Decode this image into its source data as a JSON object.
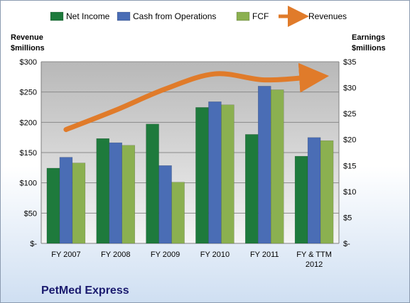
{
  "chart_data": {
    "type": "bar",
    "title": "PetMed Express",
    "categories": [
      "FY 2007",
      "FY 2008",
      "FY 2009",
      "FY 2010",
      "FY 2011",
      "FY & TTM 2012"
    ],
    "series": [
      {
        "name": "Net Income",
        "axis": "right",
        "color": "#1e7a3c",
        "values": [
          14.5,
          20.2,
          23.0,
          26.2,
          21.0,
          16.8
        ]
      },
      {
        "name": "Cash from Operations",
        "axis": "right",
        "color": "#4a6db5",
        "values": [
          16.6,
          19.4,
          15.0,
          27.3,
          30.3,
          20.4
        ]
      },
      {
        "name": "FCF",
        "axis": "right",
        "color": "#8bb050",
        "values": [
          15.5,
          18.9,
          11.8,
          26.7,
          29.6,
          19.8
        ]
      }
    ],
    "line": {
      "name": "Revenues",
      "axis": "left",
      "color": "#e07b2a",
      "values": [
        188,
        220,
        255,
        280,
        270,
        275
      ]
    },
    "y_left": {
      "label_line1": "Revenue",
      "label_line2": "$millions",
      "ylim": [
        0,
        300
      ],
      "ticks": [
        0,
        50,
        100,
        150,
        200,
        250,
        300
      ],
      "tick_labels": [
        "$-",
        "$50",
        "$100",
        "$150",
        "$200",
        "$250",
        "$300"
      ]
    },
    "y_right": {
      "label_line1": "Earnings",
      "label_line2": "$millions",
      "ylim": [
        0,
        35
      ],
      "ticks": [
        0,
        5,
        10,
        15,
        20,
        25,
        30,
        35
      ],
      "tick_labels": [
        "$-",
        "$5",
        "$10",
        "$15",
        "$20",
        "$25",
        "$30",
        "$35"
      ]
    },
    "category_labels": [
      [
        "FY 2007"
      ],
      [
        "FY 2008"
      ],
      [
        "FY 2009"
      ],
      [
        "FY 2010"
      ],
      [
        "FY 2011"
      ],
      [
        "FY & TTM",
        "2012"
      ]
    ],
    "grid": true,
    "legend_position": "top"
  }
}
